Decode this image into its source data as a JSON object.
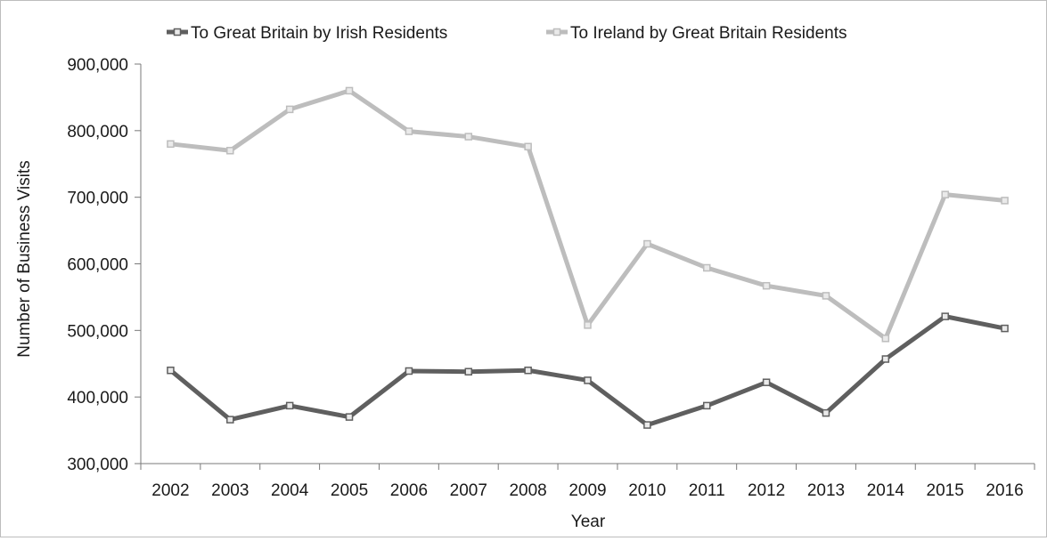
{
  "chart_data": {
    "type": "line",
    "title": "",
    "xlabel": "Year",
    "ylabel": "Number of Business Visits",
    "categories": [
      "2002",
      "2003",
      "2004",
      "2005",
      "2006",
      "2007",
      "2008",
      "2009",
      "2010",
      "2011",
      "2012",
      "2013",
      "2014",
      "2015",
      "2016"
    ],
    "ylim": [
      300000,
      900000
    ],
    "yticks": [
      300000,
      400000,
      500000,
      600000,
      700000,
      800000,
      900000
    ],
    "ytick_labels": [
      "300,000",
      "400,000",
      "500,000",
      "600,000",
      "700,000",
      "800,000",
      "900,000"
    ],
    "grid": false,
    "legend_position": "top",
    "series": [
      {
        "name": "To Great Britain by Irish Residents",
        "color": "#5f5f5f",
        "values": [
          440000,
          366000,
          387000,
          370000,
          439000,
          438000,
          440000,
          425000,
          358000,
          387000,
          422000,
          376000,
          457000,
          521000,
          503000
        ]
      },
      {
        "name": "To Ireland by Great Britain Residents",
        "color": "#bdbdbd",
        "values": [
          780000,
          770000,
          832000,
          860000,
          799000,
          791000,
          776000,
          508000,
          630000,
          594000,
          567000,
          552000,
          488000,
          704000,
          695000
        ]
      }
    ]
  }
}
